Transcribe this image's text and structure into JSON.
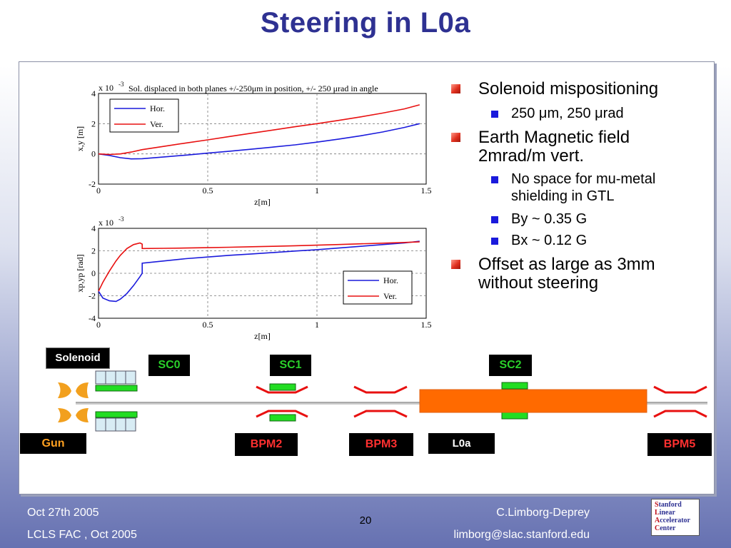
{
  "slide": {
    "title": "Steering in L0a",
    "page_number": "20",
    "footer": {
      "date": "Oct 27th 2005",
      "event": "LCLS FAC , Oct 2005",
      "author": "C.Limborg-Deprey",
      "email": "limborg@slac.stanford.edu"
    },
    "logo_lines": [
      {
        "cap": "S",
        "rest": "tanford"
      },
      {
        "cap": "L",
        "rest": "inear"
      },
      {
        "cap": "A",
        "rest": "ccelerator"
      },
      {
        "cap": "C",
        "rest": "enter"
      }
    ]
  },
  "bullets": [
    {
      "level": 1,
      "text": "Solenoid mispositioning"
    },
    {
      "level": 2,
      "text": "250  μm, 250 μrad"
    },
    {
      "level": 1,
      "text": "Earth Magnetic field"
    },
    {
      "level": 1,
      "text": "2mrad/m vert."
    },
    {
      "level": 2,
      "text": "No space for mu-metal"
    },
    {
      "level": 2,
      "text": "shielding in GTL"
    },
    {
      "level": 2,
      "text": "By ~ 0.35 G"
    },
    {
      "level": 2,
      "text": "Bx ~ 0.12 G"
    },
    {
      "level": 1,
      "text": "Offset as large as 3mm"
    },
    {
      "level": 1,
      "text": "without steering"
    }
  ],
  "beamline": {
    "labels": {
      "solenoid": "Solenoid",
      "sc0": "SC0",
      "sc1": "SC1",
      "sc2": "SC2",
      "gun": "Gun",
      "bpm2": "BPM2",
      "bpm3": "BPM3",
      "l0a": "L0a",
      "bpm5": "BPM5"
    },
    "colors": {
      "label_bg": "#000000",
      "corrector_text": "#2ad12a",
      "bpm_text": "#ff3030",
      "gun_text": "#ffa020",
      "accelerator": "#ff6a00"
    }
  },
  "chart_data": [
    {
      "type": "line",
      "title": "Sol. displaced in both planes +/-250μm in position, +/- 250 μrad in angle",
      "scale_label": "x 10",
      "scale_exp": "-3",
      "xlabel": "z[m]",
      "ylabel": "x,y [m]",
      "xlim": [
        0,
        1.5
      ],
      "ylim": [
        -2,
        4
      ],
      "xticks": [
        "0",
        "0.5",
        "1",
        "1.5"
      ],
      "yticks": [
        "-2",
        "0",
        "2",
        "4"
      ],
      "grid": true,
      "legend_position": "top-left",
      "series": [
        {
          "name": "Hor.",
          "color": "#1a1adc",
          "x": [
            0,
            0.05,
            0.1,
            0.15,
            0.2,
            0.3,
            0.4,
            0.5,
            0.6,
            0.7,
            0.8,
            0.9,
            1.0,
            1.1,
            1.2,
            1.3,
            1.4,
            1.47
          ],
          "y": [
            0,
            -0.1,
            -0.25,
            -0.33,
            -0.32,
            -0.2,
            -0.08,
            0.05,
            0.18,
            0.31,
            0.45,
            0.6,
            0.78,
            0.98,
            1.2,
            1.45,
            1.75,
            2.0
          ]
        },
        {
          "name": "Ver.",
          "color": "#e81010",
          "x": [
            0,
            0.05,
            0.1,
            0.15,
            0.2,
            0.3,
            0.4,
            0.5,
            0.6,
            0.7,
            0.8,
            0.9,
            1.0,
            1.1,
            1.2,
            1.3,
            1.4,
            1.47
          ],
          "y": [
            0,
            -0.04,
            0.0,
            0.12,
            0.28,
            0.5,
            0.72,
            0.93,
            1.15,
            1.37,
            1.58,
            1.8,
            2.0,
            2.22,
            2.45,
            2.7,
            2.98,
            3.25
          ]
        }
      ]
    },
    {
      "type": "line",
      "title": "",
      "scale_label": "x 10",
      "scale_exp": "-3",
      "xlabel": "z[m]",
      "ylabel": "xp,yp [rad]",
      "xlim": [
        0,
        1.5
      ],
      "ylim": [
        -4,
        4
      ],
      "xticks": [
        "0",
        "0.5",
        "1",
        "1.5"
      ],
      "yticks": [
        "-4",
        "-2",
        "0",
        "2",
        "4"
      ],
      "grid": true,
      "legend_position": "bottom-right",
      "series": [
        {
          "name": "Hor.",
          "color": "#1a1adc",
          "x": [
            0,
            0.02,
            0.05,
            0.08,
            0.1,
            0.13,
            0.16,
            0.19,
            0.2,
            0.2,
            0.3,
            0.4,
            0.5,
            0.6,
            0.7,
            0.8,
            0.9,
            1.0,
            1.1,
            1.2,
            1.3,
            1.4,
            1.47
          ],
          "y": [
            -1.6,
            -2.2,
            -2.45,
            -2.5,
            -2.3,
            -1.8,
            -1.1,
            -0.3,
            0.0,
            0.9,
            1.1,
            1.3,
            1.45,
            1.6,
            1.72,
            1.85,
            1.98,
            2.1,
            2.25,
            2.4,
            2.55,
            2.7,
            2.85
          ]
        },
        {
          "name": "Ver.",
          "color": "#e81010",
          "x": [
            0,
            0.02,
            0.05,
            0.08,
            0.1,
            0.13,
            0.16,
            0.19,
            0.2,
            0.2,
            0.3,
            0.4,
            0.5,
            0.6,
            0.7,
            0.8,
            0.9,
            1.0,
            1.1,
            1.2,
            1.3,
            1.4,
            1.47
          ],
          "y": [
            -1.6,
            -0.8,
            0.2,
            1.1,
            1.6,
            2.2,
            2.55,
            2.7,
            2.6,
            2.2,
            2.22,
            2.25,
            2.28,
            2.32,
            2.36,
            2.4,
            2.45,
            2.5,
            2.56,
            2.62,
            2.68,
            2.74,
            2.8
          ]
        }
      ]
    }
  ]
}
